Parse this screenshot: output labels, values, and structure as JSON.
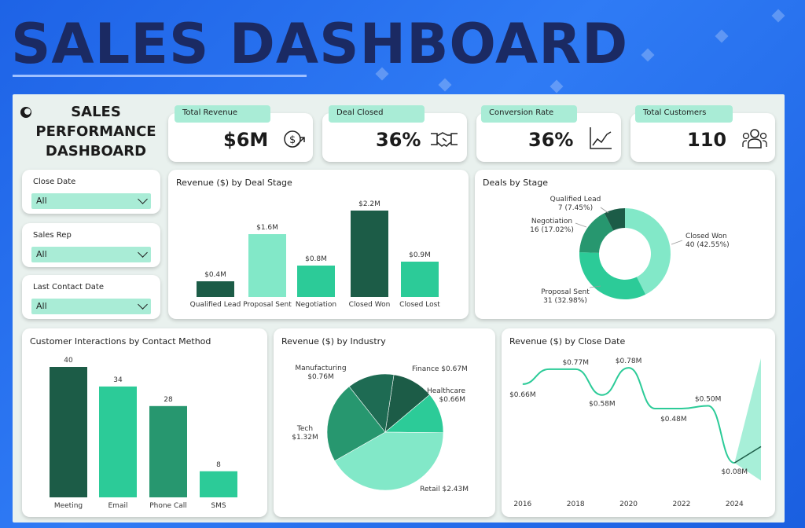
{
  "banner_title": "SALES DASHBOARD",
  "dashboard_title": "SALES PERFORMANCE DASHBOARD",
  "kpis": [
    {
      "label": "Total Revenue",
      "value": "$6M",
      "icon": "revenue-icon"
    },
    {
      "label": "Deal Closed",
      "value": "36%",
      "icon": "handshake-icon"
    },
    {
      "label": "Conversion Rate",
      "value": "36%",
      "icon": "trend-chart-icon"
    },
    {
      "label": "Total Customers",
      "value": "110",
      "icon": "users-icon"
    }
  ],
  "filters": [
    {
      "label": "Close Date",
      "value": "All"
    },
    {
      "label": "Sales Rep",
      "value": "All"
    },
    {
      "label": "Last Contact Date",
      "value": "All"
    }
  ],
  "colors": {
    "dark": "#1c5c47",
    "teal": "#2ccb98",
    "light": "#82e8c8",
    "mid": "#27976f",
    "accent": "#a9ecd6"
  },
  "chart_data": [
    {
      "id": "revenue_by_stage",
      "type": "bar",
      "title": "Revenue ($) by Deal Stage",
      "categories": [
        "Qualified Lead",
        "Proposal Sent",
        "Negotiation",
        "Closed Won",
        "Closed Lost"
      ],
      "values": [
        0.4,
        1.6,
        0.8,
        2.2,
        0.9
      ],
      "labels": [
        "$0.4M",
        "$1.6M",
        "$0.8M",
        "$2.2M",
        "$0.9M"
      ]
    },
    {
      "id": "deals_by_stage",
      "type": "pie",
      "title": "Deals by Stage",
      "categories": [
        "Closed Won",
        "Proposal Sent",
        "Negotiation",
        "Qualified Lead"
      ],
      "values": [
        40,
        31,
        16,
        7
      ],
      "labels": [
        "40 (42.55%)",
        "31 (32.98%)",
        "16 (17.02%)",
        "7 (7.45%)"
      ]
    },
    {
      "id": "interactions_by_method",
      "type": "bar",
      "title": "Customer Interactions by Contact Method",
      "categories": [
        "Meeting",
        "Email",
        "Phone Call",
        "SMS"
      ],
      "values": [
        40,
        34,
        28,
        8
      ]
    },
    {
      "id": "revenue_by_industry",
      "type": "pie",
      "title": "Revenue ($) by Industry",
      "categories": [
        "Finance",
        "Healthcare",
        "Retail",
        "Tech",
        "Manufacturing"
      ],
      "values": [
        0.67,
        0.66,
        2.43,
        1.32,
        0.76
      ],
      "labels": [
        "$0.67M",
        "$0.66M",
        "$2.43M",
        "$1.32M",
        "$0.76M"
      ]
    },
    {
      "id": "revenue_by_close_date",
      "type": "line",
      "title": "Revenue ($) by Close Date",
      "x": [
        2016,
        2017,
        2018,
        2019,
        2020,
        2021,
        2022,
        2023,
        2024
      ],
      "values": [
        0.66,
        0.77,
        0.77,
        0.58,
        0.78,
        0.48,
        0.48,
        0.5,
        0.08
      ],
      "labels": [
        "$0.66M",
        "$0.77M",
        "$0.58M",
        "$0.78M",
        "$0.48M",
        "$0.50M",
        "$0.08M"
      ],
      "xticks": [
        "2016",
        "2018",
        "2020",
        "2022",
        "2024"
      ]
    }
  ]
}
